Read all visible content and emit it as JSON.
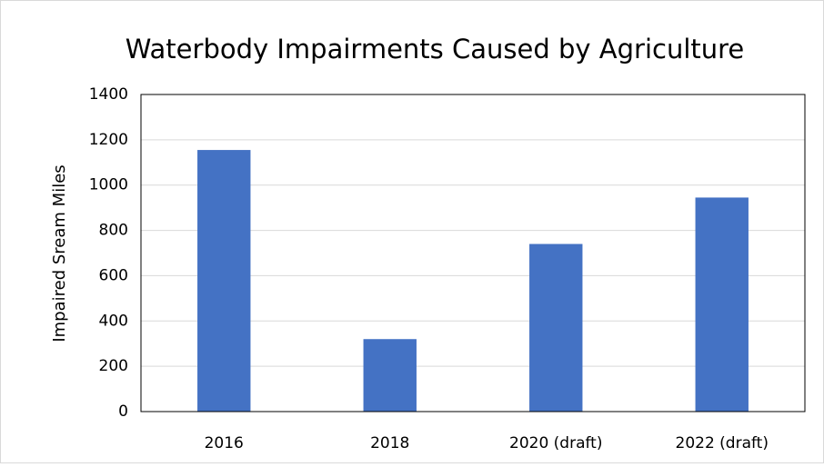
{
  "chart_data": {
    "type": "bar",
    "title": "Waterbody Impairments Caused by Agriculture",
    "y_label": "Impaired Sream Miles",
    "categories": [
      "2016",
      "2018",
      "2020 (draft)",
      "2022 (draft)"
    ],
    "values": [
      1155,
      320,
      740,
      945
    ],
    "color": "#4472c4",
    "ylim": [
      0,
      1400
    ],
    "yticks": [
      0,
      200,
      400,
      600,
      800,
      1000,
      1200,
      1400
    ],
    "grid": true
  }
}
